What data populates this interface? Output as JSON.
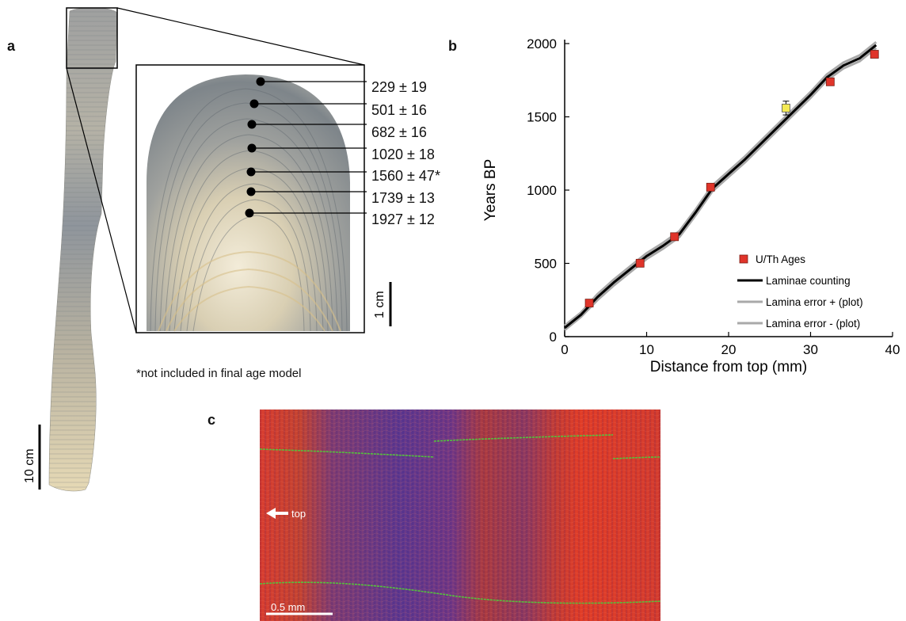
{
  "figure": {
    "panels": {
      "a": "a",
      "b": "b",
      "c": "c"
    },
    "panel_a": {
      "ages": [
        "229 ± 19",
        "501 ± 16",
        "682 ± 16",
        "1020 ± 18",
        "1560 ± 47*",
        "1739 ± 13",
        "1927 ± 12"
      ],
      "scale_1cm": "1 cm",
      "scale_10cm": "10 cm",
      "footnote": "*not included in final age model"
    },
    "panel_c": {
      "arrow_label": "top",
      "scale_label": "0.5 mm"
    }
  },
  "chart_data": {
    "type": "line",
    "xlabel": "Distance from top (mm)",
    "ylabel": "Years BP",
    "xlim": [
      0,
      40
    ],
    "ylim": [
      0,
      2000
    ],
    "xticks": [
      0,
      10,
      20,
      30,
      40
    ],
    "yticks": [
      0,
      500,
      1000,
      1500,
      2000
    ],
    "legend_position": "bottom-right",
    "colors": {
      "uth": "#e0342a",
      "excluded": "#f4ea54",
      "counting": "#000000",
      "error": "#a9a9a9"
    },
    "series": [
      {
        "name": "U/Th Ages",
        "kind": "points",
        "marker": "square",
        "x": [
          3.0,
          9.2,
          13.4,
          17.8,
          32.4,
          37.8
        ],
        "y": [
          229,
          501,
          682,
          1020,
          1739,
          1927
        ]
      },
      {
        "name": "Laminae counting",
        "kind": "line",
        "x": [
          0,
          2,
          4,
          6,
          8,
          10,
          12,
          14,
          16,
          18,
          20,
          22,
          24,
          26,
          28,
          30,
          32,
          34,
          36,
          38
        ],
        "y": [
          60,
          150,
          270,
          370,
          460,
          550,
          620,
          700,
          850,
          1010,
          1110,
          1210,
          1320,
          1430,
          1540,
          1650,
          1770,
          1850,
          1900,
          1990
        ]
      },
      {
        "name": "Lamina error +  (plot)",
        "kind": "line",
        "x": [
          0,
          2,
          4,
          6,
          8,
          10,
          12,
          14,
          16,
          18,
          20,
          22,
          24,
          26,
          28,
          30,
          32,
          34,
          36,
          38
        ],
        "y": [
          75,
          165,
          290,
          390,
          480,
          570,
          640,
          720,
          870,
          1030,
          1130,
          1230,
          1340,
          1450,
          1560,
          1670,
          1790,
          1870,
          1920,
          2010
        ]
      },
      {
        "name": "Lamina error -  (plot)",
        "kind": "line",
        "x": [
          0,
          2,
          4,
          6,
          8,
          10,
          12,
          14,
          16,
          18,
          20,
          22,
          24,
          26,
          28,
          30,
          32,
          34,
          36,
          38
        ],
        "y": [
          45,
          135,
          250,
          350,
          440,
          530,
          600,
          680,
          830,
          990,
          1090,
          1190,
          1300,
          1410,
          1520,
          1630,
          1750,
          1830,
          1880,
          1970
        ]
      }
    ],
    "excluded_point": {
      "x": 27.0,
      "y": 1560,
      "err": 47
    }
  }
}
